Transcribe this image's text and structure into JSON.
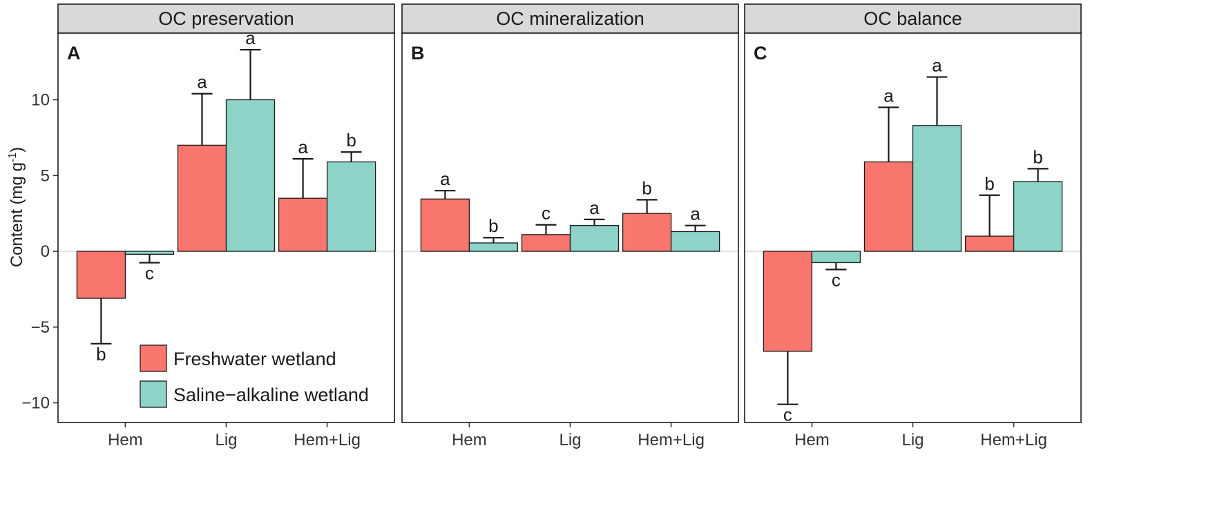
{
  "colors": {
    "freshwater": "#f8766d",
    "saline": "#8dd3c7",
    "strip_bg": "#d9d9d9",
    "zero_line": "#e3e3e3"
  },
  "chart_data": {
    "type": "bar",
    "ylabel": "Content (mg g",
    "ylabel_sup": "-1",
    "ylabel_close": ")",
    "ylim": [
      -10.9,
      14.9
    ],
    "yticks": [
      -10,
      -5,
      0,
      5,
      10
    ],
    "ytick_labels": [
      "−10",
      "−5",
      "0",
      "5",
      "10"
    ],
    "categories": [
      "Hem",
      "Lig",
      "Hem+Lig"
    ],
    "legend": {
      "placement": "inside-bottom-right of panel A",
      "entries": [
        {
          "name": "Freshwater wetland",
          "color_key": "freshwater"
        },
        {
          "name": "Saline−alkaline wetland",
          "color_key": "saline"
        }
      ]
    },
    "panels": [
      {
        "id": "A",
        "letter": "A",
        "title": "OC  preservation",
        "series": [
          {
            "name": "Freshwater wetland",
            "values": [
              -3.1,
              7.0,
              3.5
            ],
            "errors": [
              3.0,
              3.4,
              2.6
            ],
            "labels": [
              "b",
              "a",
              "a"
            ]
          },
          {
            "name": "Saline−alkaline wetland",
            "values": [
              -0.2,
              10.0,
              5.9
            ],
            "errors": [
              0.55,
              3.3,
              0.65
            ],
            "labels": [
              "c",
              "a",
              "b"
            ]
          }
        ]
      },
      {
        "id": "B",
        "letter": "B",
        "title": "OC mineralization",
        "series": [
          {
            "name": "Freshwater wetland",
            "values": [
              3.45,
              1.1,
              2.5
            ],
            "errors": [
              0.55,
              0.65,
              0.9
            ],
            "labels": [
              "a",
              "c",
              "b"
            ]
          },
          {
            "name": "Saline−alkaline wetland",
            "values": [
              0.55,
              1.7,
              1.3
            ],
            "errors": [
              0.35,
              0.4,
              0.4
            ],
            "labels": [
              "b",
              "a",
              "a"
            ]
          }
        ]
      },
      {
        "id": "C",
        "letter": "C",
        "title": "OC balance",
        "series": [
          {
            "name": "Freshwater wetland",
            "values": [
              -6.6,
              5.9,
              1.0
            ],
            "errors": [
              3.5,
              3.6,
              2.7
            ],
            "labels": [
              "c",
              "a",
              "b"
            ]
          },
          {
            "name": "Saline−alkaline wetland",
            "values": [
              -0.75,
              8.3,
              4.6
            ],
            "errors": [
              0.45,
              3.2,
              0.85
            ],
            "labels": [
              "c",
              "a",
              "b"
            ]
          }
        ]
      }
    ]
  }
}
